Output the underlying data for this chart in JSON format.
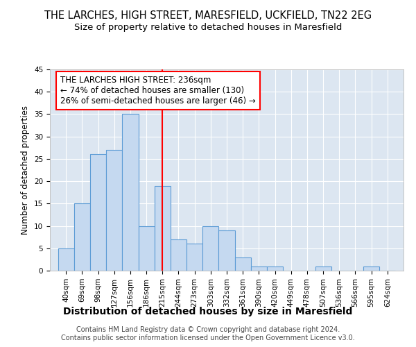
{
  "title": "THE LARCHES, HIGH STREET, MARESFIELD, UCKFIELD, TN22 2EG",
  "subtitle": "Size of property relative to detached houses in Maresfield",
  "xlabel": "Distribution of detached houses by size in Maresfield",
  "ylabel": "Number of detached properties",
  "bar_color": "#c5d9f0",
  "bar_edge_color": "#5b9bd5",
  "background_color": "#dce6f1",
  "grid_color": "white",
  "bin_labels": [
    "40sqm",
    "69sqm",
    "98sqm",
    "127sqm",
    "156sqm",
    "186sqm",
    "215sqm",
    "244sqm",
    "273sqm",
    "303sqm",
    "332sqm",
    "361sqm",
    "390sqm",
    "420sqm",
    "449sqm",
    "478sqm",
    "507sqm",
    "536sqm",
    "566sqm",
    "595sqm",
    "624sqm"
  ],
  "values": [
    5,
    15,
    26,
    27,
    35,
    10,
    19,
    7,
    6,
    10,
    9,
    3,
    1,
    1,
    0,
    0,
    1,
    0,
    0,
    1,
    0
  ],
  "n_bins": 21,
  "ylim": [
    0,
    45
  ],
  "yticks": [
    0,
    5,
    10,
    15,
    20,
    25,
    30,
    35,
    40,
    45
  ],
  "vline_x": 6.5,
  "annotation_title": "THE LARCHES HIGH STREET: 236sqm",
  "annotation_line1": "← 74% of detached houses are smaller (130)",
  "annotation_line2": "26% of semi-detached houses are larger (46) →",
  "annotation_box_color": "white",
  "annotation_border_color": "red",
  "vline_color": "red",
  "footer_line1": "Contains HM Land Registry data © Crown copyright and database right 2024.",
  "footer_line2": "Contains public sector information licensed under the Open Government Licence v3.0.",
  "title_fontsize": 10.5,
  "subtitle_fontsize": 9.5,
  "xlabel_fontsize": 10,
  "ylabel_fontsize": 8.5,
  "tick_fontsize": 7.5,
  "annotation_fontsize": 8.5,
  "footer_fontsize": 7
}
